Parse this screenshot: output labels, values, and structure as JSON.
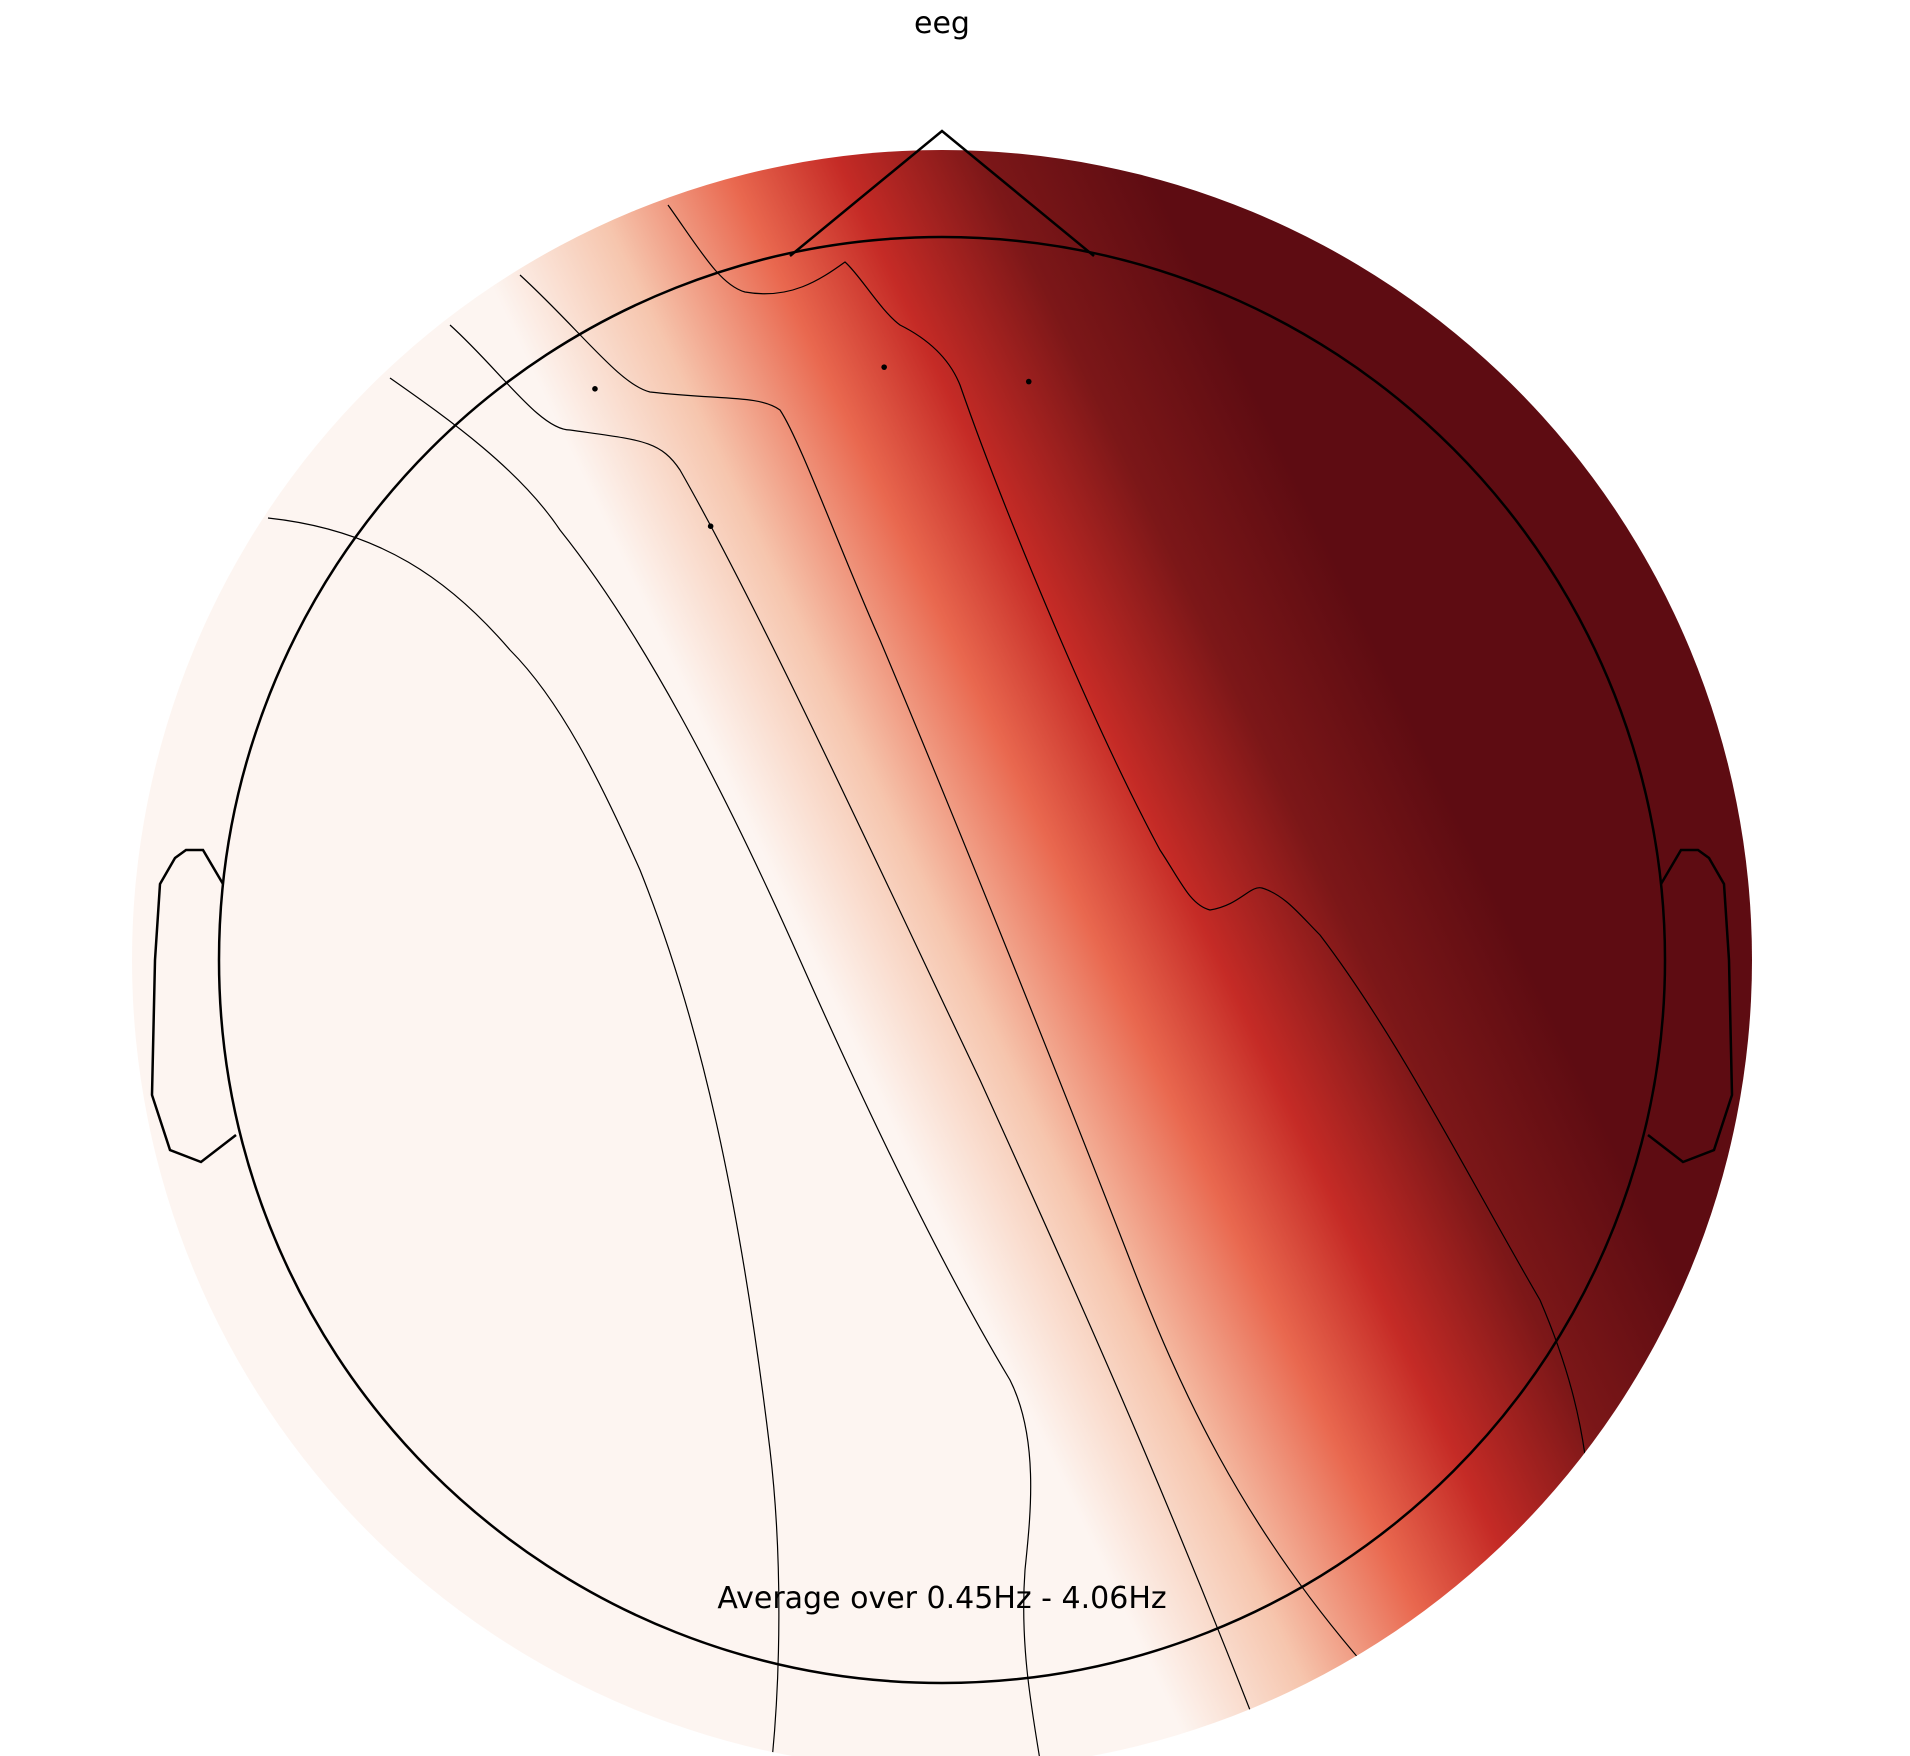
{
  "chart_data": {
    "type": "heatmap",
    "title": "eeg",
    "annotation": "Average over 0.45Hz - 4.06Hz",
    "colormap": "Reds",
    "colors": {
      "low": "#fdf5f1",
      "mid_light": "#f6c5ad",
      "mid": "#e9684f",
      "mid_dark": "#c52b26",
      "dark": "#7c1718",
      "max": "#5e0c12",
      "outline": "#000000"
    },
    "grid": false,
    "legend": "none",
    "sensors": [
      {
        "x": -0.48,
        "y": 0.79
      },
      {
        "x": -0.08,
        "y": 0.82
      },
      {
        "x": 0.12,
        "y": 0.8
      },
      {
        "x": -0.32,
        "y": 0.6
      }
    ]
  }
}
